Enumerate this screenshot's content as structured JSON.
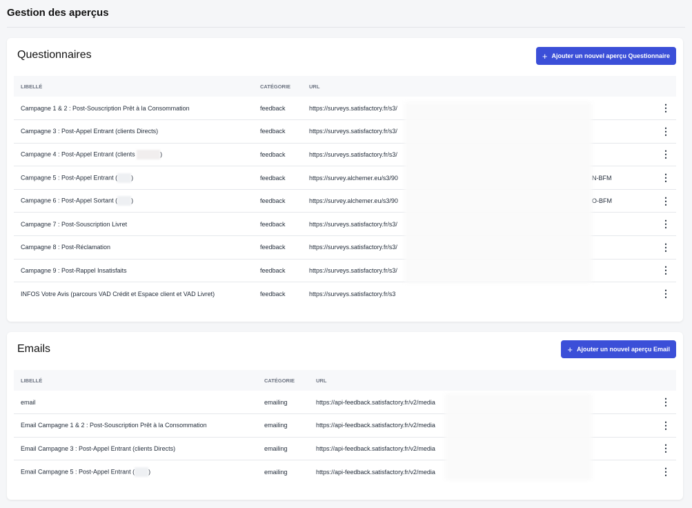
{
  "page": {
    "title": "Gestion des aperçus"
  },
  "questionnaires": {
    "title": "Questionnaires",
    "add_button": "Ajouter un nouvel aperçu Questionnaire",
    "columns": [
      "LIBELLÉ",
      "CATÉGORIE",
      "URL"
    ],
    "rows": [
      {
        "label": "Campagne 1 & 2 : Post-Souscription Prêt à la Consommation",
        "category": "feedback",
        "url": "https://surveys.satisfactory.fr/s3/",
        "url_end": ""
      },
      {
        "label": "Campagne 3 : Post-Appel Entrant (clients Directs)",
        "category": "feedback",
        "url": "https://surveys.satisfactory.fr/s3/",
        "url_end": ""
      },
      {
        "label": "Campagne 4 : Post-Appel Entrant (clients ",
        "label_end": ")",
        "category": "feedback",
        "url": "https://surveys.satisfactory.fr/s3/",
        "url_end": ""
      },
      {
        "label": "Campagne 5 : Post-Appel Entrant (",
        "label_end": ")",
        "category": "feedback",
        "url": "https://survey.alchemer.eu/s3/90",
        "url_end": "N-BFM"
      },
      {
        "label": "Campagne 6 : Post-Appel Sortant (",
        "label_end": ")",
        "category": "feedback",
        "url": "https://survey.alchemer.eu/s3/90",
        "url_end": "O-BFM"
      },
      {
        "label": "Campagne 7 : Post-Souscription Livret",
        "category": "feedback",
        "url": "https://surveys.satisfactory.fr/s3/",
        "url_end": ""
      },
      {
        "label": "Campagne 8 : Post-Réclamation",
        "category": "feedback",
        "url": "https://surveys.satisfactory.fr/s3/",
        "url_end": ""
      },
      {
        "label": "Campagne 9 : Post-Rappel Insatisfaits",
        "category": "feedback",
        "url": "https://surveys.satisfactory.fr/s3/",
        "url_end": ""
      },
      {
        "label": "INFOS Votre Avis (parcours VAD Crédit et Espace client et VAD Livret)",
        "category": "feedback",
        "url": "https://surveys.satisfactory.fr/s3",
        "url_end": ""
      }
    ]
  },
  "emails": {
    "title": "Emails",
    "add_button": "Ajouter un nouvel aperçu Email",
    "columns": [
      "LIBELLÉ",
      "CATÉGORIE",
      "URL"
    ],
    "rows": [
      {
        "label": "email",
        "category": "emailing",
        "url": "https://api-feedback.satisfactory.fr/v2/media"
      },
      {
        "label": "Email Campagne 1 & 2 : Post-Souscription Prêt à la Consommation",
        "category": "emailing",
        "url": "https://api-feedback.satisfactory.fr/v2/media"
      },
      {
        "label": "Email Campagne 3 : Post-Appel Entrant (clients Directs)",
        "category": "emailing",
        "url": "https://api-feedback.satisfactory.fr/v2/media"
      },
      {
        "label": "Email Campagne 5 : Post-Appel Entrant (",
        "label_end": ")",
        "category": "emailing",
        "url": "https://api-feedback.satisfactory.fr/v2/media"
      }
    ]
  },
  "colors": {
    "accent": "#3b4fd8"
  },
  "icons": {
    "add": "plus-icon",
    "row_menu": "more-vertical-icon"
  }
}
